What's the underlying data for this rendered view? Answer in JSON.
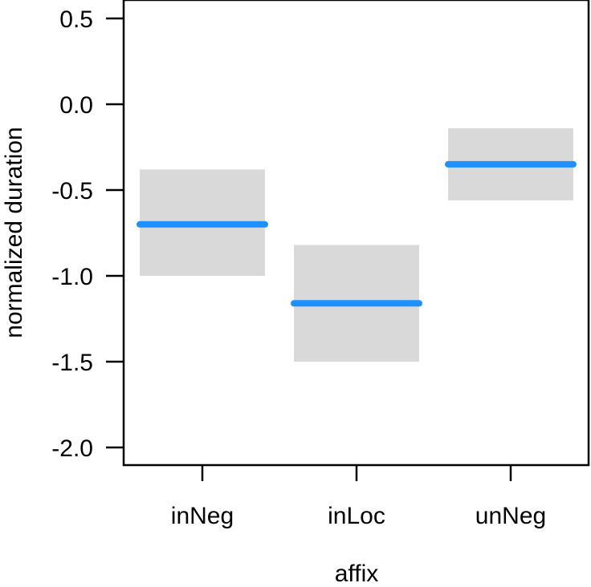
{
  "chart_data": {
    "type": "crossbar",
    "title": "",
    "xlabel": "affix",
    "ylabel": "normalized duration",
    "categories": [
      "inNeg",
      "inLoc",
      "unNeg"
    ],
    "estimates": [
      -0.7,
      -1.16,
      -0.35
    ],
    "ci_lower": [
      -1.0,
      -1.5,
      -0.56
    ],
    "ci_upper": [
      -0.38,
      -0.82,
      -0.14
    ],
    "ylim": [
      -2.1,
      0.55
    ],
    "yticks": [
      0.5,
      0.0,
      -0.5,
      -1.0,
      -1.5,
      -2.0
    ],
    "ytick_labels": [
      "0.5",
      "0.0",
      "-0.5",
      "-1.0",
      "-1.5",
      "-2.0"
    ],
    "grid": false,
    "colors": {
      "estimate": "#1e90ff",
      "interval": "#d9d9d9",
      "axis": "#000000"
    }
  }
}
